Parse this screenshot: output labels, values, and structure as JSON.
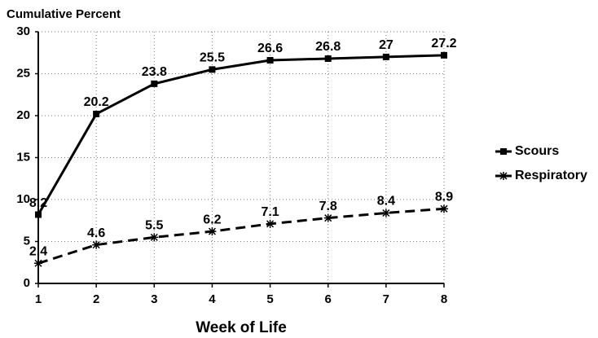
{
  "chart_data": {
    "type": "line",
    "y_label": "Cumulative Percent",
    "x_label": "Week of Life",
    "x": [
      1,
      2,
      3,
      4,
      5,
      6,
      7,
      8
    ],
    "series": [
      {
        "name": "Scours",
        "color": "#000000",
        "line_style": "solid",
        "marker": "square",
        "values": [
          8.2,
          20.2,
          23.8,
          25.5,
          26.6,
          26.8,
          27,
          27.2
        ]
      },
      {
        "name": "Respiratory",
        "color": "#000000",
        "line_style": "dashed",
        "marker": "asterisk",
        "values": [
          2.4,
          4.6,
          5.5,
          6.2,
          7.1,
          7.8,
          8.4,
          8.9
        ]
      }
    ],
    "xlim": [
      1,
      8
    ],
    "xticks": [
      1,
      2,
      3,
      4,
      5,
      6,
      7,
      8
    ],
    "ylim": [
      0,
      30
    ],
    "yticks": [
      0,
      5,
      10,
      15,
      20,
      25,
      30
    ],
    "grid": true,
    "legend": "right"
  }
}
